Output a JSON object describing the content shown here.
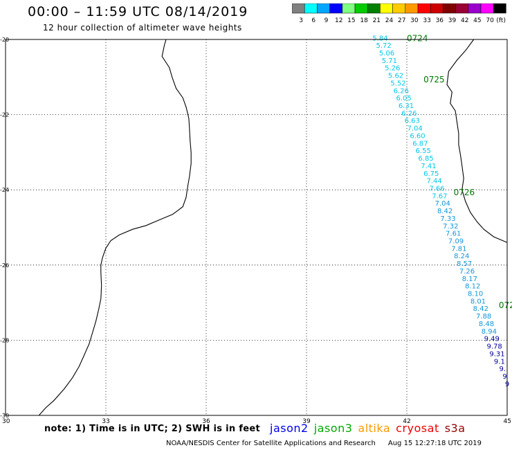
{
  "header": {
    "title": "00:00 – 11:59 UTC 08/14/2019",
    "subtitle": "12 hour collection of altimeter wave heights"
  },
  "colorbar": {
    "unit_label": "(ft)",
    "bins": [
      {
        "label": "3",
        "color": "#808080"
      },
      {
        "label": "6",
        "color": "#00ffff"
      },
      {
        "label": "9",
        "color": "#00a6ff"
      },
      {
        "label": "12",
        "color": "#0000ff"
      },
      {
        "label": "15",
        "color": "#80ff80"
      },
      {
        "label": "18",
        "color": "#00cc00"
      },
      {
        "label": "21",
        "color": "#008000"
      },
      {
        "label": "24",
        "color": "#ffff00"
      },
      {
        "label": "27",
        "color": "#ffcc00"
      },
      {
        "label": "30",
        "color": "#ff9900"
      },
      {
        "label": "33",
        "color": "#ff0000"
      },
      {
        "label": "36",
        "color": "#cc0000"
      },
      {
        "label": "39",
        "color": "#800000"
      },
      {
        "label": "42",
        "color": "#990033"
      },
      {
        "label": "45",
        "color": "#9900cc"
      },
      {
        "label": "70",
        "color": "#ff00ff"
      },
      {
        "label": "",
        "color": "#000000"
      }
    ]
  },
  "map": {
    "lon_ticks": [
      "30",
      "33",
      "36",
      "39",
      "42",
      "45"
    ],
    "lat_ticks": [
      "-20",
      "-22",
      "-24",
      "-26",
      "-28",
      "-30"
    ],
    "lon_range": [
      30,
      45
    ],
    "lat_range": [
      -30,
      -20
    ],
    "grid": true,
    "time_labels": [
      {
        "text": "0724",
        "lon": 42.0,
        "lat": -19.95
      },
      {
        "text": "0725",
        "lon": 42.5,
        "lat": -21.05
      },
      {
        "text": "0726",
        "lon": 43.4,
        "lat": -24.05
      },
      {
        "text": "072",
        "lon": 44.75,
        "lat": -27.05
      }
    ],
    "track_colors": {
      "cyan": "#00c8e8",
      "mid": "#1296d8",
      "navy": "#000099"
    },
    "swh_points": [
      {
        "text": "5.84",
        "lon": 41.2,
        "lat": -19.95,
        "c": "cyan"
      },
      {
        "text": "5.72",
        "lon": 41.31,
        "lat": -20.15,
        "c": "cyan"
      },
      {
        "text": "5.06",
        "lon": 41.4,
        "lat": -20.35,
        "c": "cyan"
      },
      {
        "text": "5.71",
        "lon": 41.48,
        "lat": -20.55,
        "c": "cyan"
      },
      {
        "text": "5.26",
        "lon": 41.57,
        "lat": -20.75,
        "c": "cyan"
      },
      {
        "text": "5.62",
        "lon": 41.67,
        "lat": -20.95,
        "c": "cyan"
      },
      {
        "text": "5.52",
        "lon": 41.74,
        "lat": -21.15,
        "c": "cyan"
      },
      {
        "text": "6.26",
        "lon": 41.83,
        "lat": -21.35,
        "c": "cyan"
      },
      {
        "text": "6.05",
        "lon": 41.91,
        "lat": -21.55,
        "c": "cyan"
      },
      {
        "text": "6.31",
        "lon": 41.98,
        "lat": -21.75,
        "c": "cyan"
      },
      {
        "text": "6.26",
        "lon": 42.07,
        "lat": -21.95,
        "c": "cyan"
      },
      {
        "text": "6.63",
        "lon": 42.16,
        "lat": -22.15,
        "c": "cyan"
      },
      {
        "text": "7.04",
        "lon": 42.24,
        "lat": -22.35,
        "c": "cyan"
      },
      {
        "text": "6.60",
        "lon": 42.32,
        "lat": -22.55,
        "c": "cyan"
      },
      {
        "text": "6.87",
        "lon": 42.4,
        "lat": -22.75,
        "c": "cyan"
      },
      {
        "text": "6.55",
        "lon": 42.49,
        "lat": -22.95,
        "c": "cyan"
      },
      {
        "text": "6.85",
        "lon": 42.57,
        "lat": -23.15,
        "c": "cyan"
      },
      {
        "text": "7.41",
        "lon": 42.65,
        "lat": -23.35,
        "c": "cyan"
      },
      {
        "text": "6.75",
        "lon": 42.73,
        "lat": -23.55,
        "c": "cyan"
      },
      {
        "text": "7.44",
        "lon": 42.82,
        "lat": -23.75,
        "c": "cyan"
      },
      {
        "text": "7.66",
        "lon": 42.9,
        "lat": -23.95,
        "c": "cyan"
      },
      {
        "text": "7.67",
        "lon": 42.98,
        "lat": -24.15,
        "c": "cyan"
      },
      {
        "text": "7.04",
        "lon": 43.07,
        "lat": -24.35,
        "c": "mid"
      },
      {
        "text": "8.42",
        "lon": 43.14,
        "lat": -24.55,
        "c": "mid"
      },
      {
        "text": "7.33",
        "lon": 43.23,
        "lat": -24.75,
        "c": "mid"
      },
      {
        "text": "7.32",
        "lon": 43.31,
        "lat": -24.95,
        "c": "mid"
      },
      {
        "text": "7.61",
        "lon": 43.39,
        "lat": -25.15,
        "c": "mid"
      },
      {
        "text": "7.09",
        "lon": 43.47,
        "lat": -25.35,
        "c": "mid"
      },
      {
        "text": "7.81",
        "lon": 43.56,
        "lat": -25.55,
        "c": "mid"
      },
      {
        "text": "8.24",
        "lon": 43.64,
        "lat": -25.75,
        "c": "mid"
      },
      {
        "text": "8.57",
        "lon": 43.72,
        "lat": -25.95,
        "c": "mid"
      },
      {
        "text": "7.26",
        "lon": 43.8,
        "lat": -26.15,
        "c": "mid"
      },
      {
        "text": "8.17",
        "lon": 43.88,
        "lat": -26.35,
        "c": "mid"
      },
      {
        "text": "8.12",
        "lon": 43.97,
        "lat": -26.55,
        "c": "mid"
      },
      {
        "text": "8.10",
        "lon": 44.05,
        "lat": -26.75,
        "c": "mid"
      },
      {
        "text": "8.01",
        "lon": 44.13,
        "lat": -26.95,
        "c": "mid"
      },
      {
        "text": "8.42",
        "lon": 44.21,
        "lat": -27.15,
        "c": "mid"
      },
      {
        "text": "7.88",
        "lon": 44.3,
        "lat": -27.35,
        "c": "mid"
      },
      {
        "text": "8.48",
        "lon": 44.38,
        "lat": -27.55,
        "c": "mid"
      },
      {
        "text": "8.94",
        "lon": 44.46,
        "lat": -27.75,
        "c": "mid"
      },
      {
        "text": "9.49",
        "lon": 44.54,
        "lat": -27.95,
        "c": "navy"
      },
      {
        "text": "9.78",
        "lon": 44.62,
        "lat": -28.15,
        "c": "navy"
      },
      {
        "text": "9.31",
        "lon": 44.7,
        "lat": -28.35,
        "c": "navy"
      },
      {
        "text": "9.1",
        "lon": 44.77,
        "lat": -28.55,
        "c": "navy"
      },
      {
        "text": "9.",
        "lon": 44.86,
        "lat": -28.75,
        "c": "navy"
      },
      {
        "text": "9",
        "lon": 44.93,
        "lat": -28.95,
        "c": "navy"
      },
      {
        "text": "9",
        "lon": 45.0,
        "lat": -29.15,
        "c": "navy"
      }
    ],
    "west_coast": [
      [
        34.8,
        -20
      ],
      [
        34.75,
        -20.15
      ],
      [
        34.68,
        -20.45
      ],
      [
        34.9,
        -20.75
      ],
      [
        34.98,
        -21.0
      ],
      [
        35.1,
        -21.3
      ],
      [
        35.3,
        -21.55
      ],
      [
        35.4,
        -21.8
      ],
      [
        35.48,
        -22.1
      ],
      [
        35.5,
        -22.35
      ],
      [
        35.52,
        -22.7
      ],
      [
        35.55,
        -23.0
      ],
      [
        35.55,
        -23.3
      ],
      [
        35.5,
        -23.65
      ],
      [
        35.45,
        -23.9
      ],
      [
        35.4,
        -24.2
      ],
      [
        35.3,
        -24.45
      ],
      [
        35.0,
        -24.65
      ],
      [
        34.6,
        -24.8
      ],
      [
        34.2,
        -24.95
      ],
      [
        33.8,
        -25.05
      ],
      [
        33.4,
        -25.2
      ],
      [
        33.15,
        -25.35
      ],
      [
        33.0,
        -25.55
      ],
      [
        32.9,
        -25.8
      ],
      [
        32.85,
        -26.0
      ],
      [
        32.85,
        -26.2
      ],
      [
        32.87,
        -26.55
      ],
      [
        32.85,
        -26.9
      ],
      [
        32.78,
        -27.2
      ],
      [
        32.7,
        -27.5
      ],
      [
        32.6,
        -27.8
      ],
      [
        32.5,
        -28.1
      ],
      [
        32.35,
        -28.4
      ],
      [
        32.2,
        -28.7
      ],
      [
        32.0,
        -29.0
      ],
      [
        31.75,
        -29.3
      ],
      [
        31.45,
        -29.6
      ],
      [
        31.2,
        -29.8
      ],
      [
        31.0,
        -30.0
      ]
    ],
    "east_coast": [
      [
        44.0,
        -20.0
      ],
      [
        43.75,
        -20.3
      ],
      [
        43.5,
        -20.55
      ],
      [
        43.25,
        -20.85
      ],
      [
        43.2,
        -21.2
      ],
      [
        43.35,
        -21.4
      ],
      [
        43.3,
        -21.7
      ],
      [
        43.45,
        -21.9
      ],
      [
        43.5,
        -22.2
      ],
      [
        43.55,
        -22.5
      ],
      [
        43.55,
        -22.8
      ],
      [
        43.6,
        -23.05
      ],
      [
        43.65,
        -23.35
      ],
      [
        43.7,
        -23.7
      ],
      [
        43.65,
        -24.0
      ],
      [
        43.75,
        -24.3
      ],
      [
        43.9,
        -24.6
      ],
      [
        44.1,
        -24.85
      ],
      [
        44.3,
        -25.05
      ],
      [
        44.6,
        -25.25
      ],
      [
        45.0,
        -25.4
      ]
    ]
  },
  "footer": {
    "note": "note: 1) Time is in UTC; 2) SWH is in feet",
    "satellites": [
      {
        "label": "jason2",
        "color": "#0000ee"
      },
      {
        "label": "jason3",
        "color": "#00aa00"
      },
      {
        "label": "altika",
        "color": "#ff9900"
      },
      {
        "label": "cryosat",
        "color": "#ee0000"
      },
      {
        "label": "s3a",
        "color": "#990000"
      }
    ],
    "credit": "NOAA/NESDIS Center for Satellite Applications and Research",
    "timestamp": "Aug 15 12:27:18 UTC 2019"
  }
}
